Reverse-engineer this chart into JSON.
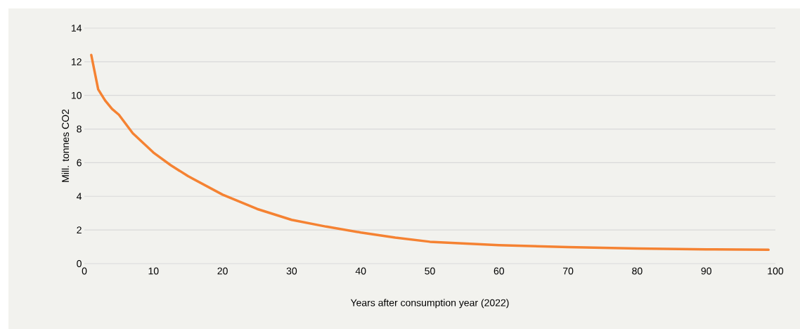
{
  "chart_data": {
    "type": "line",
    "xlabel": "Years after consumption year (2022)",
    "ylabel": "Mill. tonnes CO2",
    "x": [
      1,
      2,
      3,
      4,
      5,
      7,
      10,
      12.5,
      15,
      20,
      25,
      30,
      35,
      40,
      45,
      50,
      60,
      70,
      80,
      90,
      99
    ],
    "series": [
      {
        "color": "#f58232",
        "values": [
          12.4,
          10.36,
          9.7,
          9.2,
          8.85,
          7.75,
          6.6,
          5.85,
          5.2,
          4.1,
          3.25,
          2.6,
          2.2,
          1.85,
          1.55,
          1.3,
          1.1,
          0.98,
          0.9,
          0.85,
          0.82
        ]
      }
    ],
    "xlim": [
      0,
      100
    ],
    "ylim": [
      0,
      14
    ],
    "xticks": [
      0,
      10,
      20,
      30,
      40,
      50,
      60,
      70,
      80,
      90,
      100
    ],
    "yticks": [
      0,
      2,
      4,
      6,
      8,
      10,
      12,
      14
    ],
    "grid": "y",
    "marker": "none",
    "line_style": "solid"
  }
}
